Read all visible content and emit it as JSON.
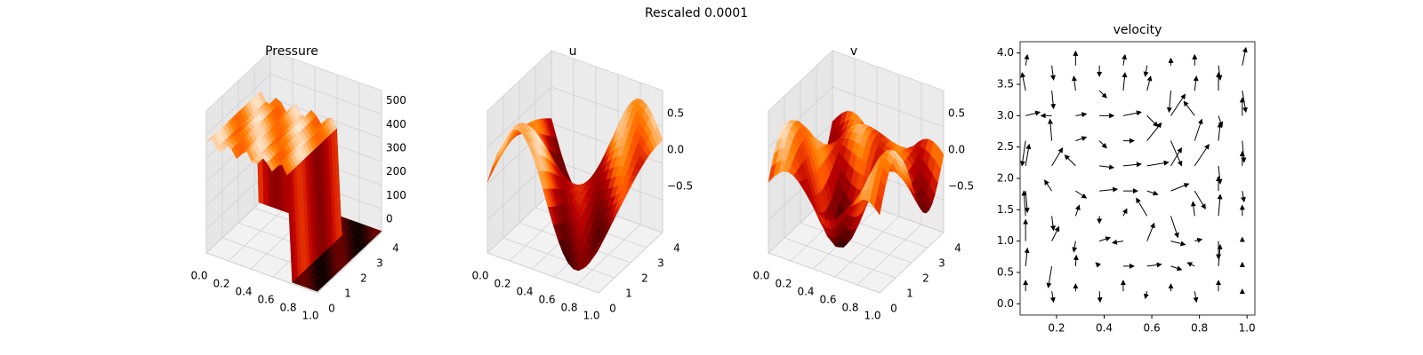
{
  "title": "Rescaled 0.0001",
  "chart_data": [
    {
      "type": "surface3d",
      "title": "Pressure",
      "colormap": "gist_heat",
      "xlim": [
        0,
        1
      ],
      "xticks": [
        {
          "value": 0,
          "label": "0.0"
        },
        0.2,
        0.4,
        0.6,
        0.8,
        {
          "value": 1,
          "label": "1.0"
        }
      ],
      "ylim": [
        0,
        4
      ],
      "yticks": [
        0,
        1,
        2,
        3,
        4
      ],
      "zlim": [
        0,
        600
      ],
      "zticks": [
        0,
        100,
        200,
        300,
        400,
        500
      ]
    },
    {
      "type": "surface3d",
      "title": "u",
      "colormap": "gist_heat",
      "xlim": [
        0,
        1
      ],
      "xticks": [
        {
          "value": 0,
          "label": "0.0"
        },
        0.2,
        0.4,
        0.6,
        0.8,
        {
          "value": 1,
          "label": "1.0"
        }
      ],
      "ylim": [
        0,
        4
      ],
      "yticks": [
        0,
        1,
        2,
        3,
        4
      ],
      "zlim": [
        -0.95,
        1.0
      ],
      "zticks": [
        {
          "value": -0.5,
          "label": "−0.5"
        },
        {
          "value": 0,
          "label": "0.0"
        },
        0.5
      ]
    },
    {
      "type": "surface3d",
      "title": "v",
      "colormap": "gist_heat",
      "xlim": [
        0,
        1
      ],
      "xticks": [
        {
          "value": 0,
          "label": "0.0"
        },
        0.2,
        0.4,
        0.6,
        0.8,
        {
          "value": 1,
          "label": "1.0"
        }
      ],
      "ylim": [
        0,
        4
      ],
      "yticks": [
        0,
        1,
        2,
        3,
        4
      ],
      "zlim": [
        -0.95,
        1.0
      ],
      "zticks": [
        {
          "value": -0.5,
          "label": "−0.5"
        },
        {
          "value": 0,
          "label": "0.0"
        },
        0.5
      ]
    },
    {
      "type": "quiver",
      "title": "velocity",
      "color": "#000000",
      "xlim": [
        0.047,
        1.033
      ],
      "xticks": [
        0.2,
        0.4,
        0.6,
        0.8,
        {
          "value": 1,
          "label": "1.0"
        }
      ],
      "ylim": [
        -0.18,
        4.18
      ],
      "yticks": [
        {
          "value": 0,
          "label": "0.0"
        },
        0.5,
        {
          "value": 1,
          "label": "1.0"
        },
        1.5,
        {
          "value": 2,
          "label": "2.0"
        },
        2.5,
        {
          "value": 3,
          "label": "3.0"
        },
        3.5,
        {
          "value": 4,
          "label": "4.0"
        }
      ],
      "x": [
        0.07,
        0.18,
        0.28,
        0.38,
        0.48,
        0.58,
        0.68,
        0.78,
        0.88,
        0.98
      ],
      "y": [
        0.2,
        0.6,
        1.0,
        1.4,
        1.8,
        2.2,
        2.6,
        3.0,
        3.4,
        3.8
      ],
      "u": [
        [
          0,
          0.05,
          0,
          0.02,
          0,
          -0.05,
          0,
          0.05,
          0,
          0
        ],
        [
          0.05,
          -0.1,
          0.02,
          -0.1,
          0.3,
          0.4,
          0.3,
          -0.2,
          0.05,
          0
        ],
        [
          0,
          0.2,
          -0.05,
          0.3,
          -0.3,
          0.2,
          0.4,
          0.2,
          0,
          0
        ],
        [
          -0.05,
          0.05,
          0.1,
          0,
          0.1,
          -0.3,
          0.2,
          -0.05,
          0.05,
          0
        ],
        [
          0.05,
          -0.2,
          0.3,
          0.5,
          0.4,
          0.3,
          0.5,
          0.3,
          0,
          0.05
        ],
        [
          0.1,
          0.3,
          -0.3,
          0.4,
          0.5,
          0.6,
          0.3,
          0.4,
          0.05,
          0
        ],
        [
          -0.1,
          -0.05,
          0.3,
          0.2,
          0.3,
          0.4,
          0.3,
          0.2,
          0.05,
          0.05
        ],
        [
          0.4,
          -0.3,
          0.3,
          0.4,
          0.5,
          0.3,
          0.4,
          -0.3,
          0.1,
          0
        ],
        [
          -0.1,
          0.05,
          -0.05,
          0.2,
          0.05,
          0.1,
          -0.05,
          0.05,
          0,
          0.1
        ],
        [
          0.05,
          0.05,
          0,
          0,
          0.05,
          -0.05,
          0,
          0,
          0.05,
          0.1
        ]
      ],
      "v": [
        [
          0.3,
          -0.3,
          0.2,
          -0.3,
          0.3,
          -0.2,
          0.2,
          -0.3,
          0.3,
          0.05
        ],
        [
          0.5,
          -0.6,
          0.3,
          0.1,
          0,
          0.05,
          -0.1,
          0.1,
          0.6,
          0.1
        ],
        [
          0.6,
          0.4,
          -0.3,
          0.1,
          -0.05,
          0.5,
          -0.1,
          0.05,
          -0.5,
          0.1
        ],
        [
          0.7,
          -0.4,
          0.3,
          -0.2,
          0.2,
          0.5,
          -0.6,
          0.4,
          0.6,
          0.3
        ],
        [
          -0.6,
          0.3,
          -0.2,
          0.05,
          0,
          -0.1,
          0.2,
          -0.5,
          0.4,
          -0.3
        ],
        [
          0.6,
          0.5,
          0.3,
          -0.05,
          0.05,
          0.1,
          0.5,
          0.6,
          -0.5,
          0.4
        ],
        [
          -0.7,
          0.6,
          0.1,
          -0.2,
          0,
          0.5,
          -0.7,
          0.6,
          0.5,
          -0.6
        ],
        [
          0.1,
          0,
          0.05,
          0,
          0.1,
          -0.3,
          0.6,
          0.4,
          -0.3,
          0.5
        ],
        [
          0.5,
          -0.5,
          0.4,
          -0.2,
          0.5,
          0.4,
          -0.6,
          0.4,
          0.5,
          -0.6
        ],
        [
          0.3,
          -0.4,
          0.4,
          -0.3,
          0.3,
          -0.3,
          0.2,
          0.3,
          -0.4,
          0.5
        ]
      ]
    }
  ]
}
